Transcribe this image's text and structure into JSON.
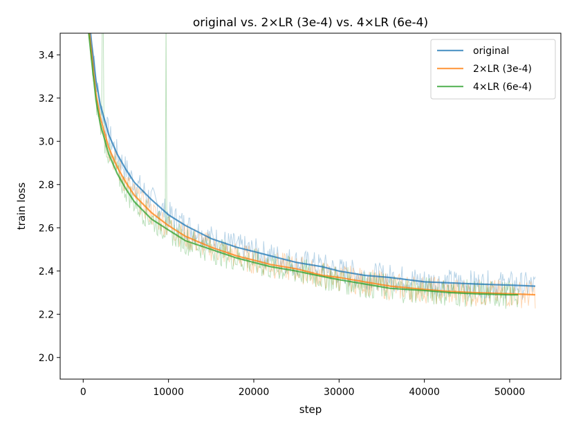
{
  "chart_data": {
    "type": "line",
    "title": "original vs. 2×LR (3e-4) vs. 4×LR (6e-4)",
    "xlabel": "step",
    "ylabel": "train loss",
    "xlim": [
      -2700,
      56000
    ],
    "ylim": [
      1.9,
      3.5
    ],
    "xticks": [
      0,
      10000,
      20000,
      30000,
      40000,
      50000
    ],
    "yticks": [
      2.0,
      2.2,
      2.4,
      2.6,
      2.8,
      3.0,
      3.2,
      3.4
    ],
    "grid": false,
    "legend": "top-right",
    "series": [
      {
        "name": "original",
        "color": "#1f77b4",
        "x": [
          600,
          1000,
          1500,
          2000,
          3000,
          4000,
          5000,
          6000,
          8000,
          10000,
          12000,
          15000,
          18000,
          20000,
          22000,
          25000,
          28000,
          30000,
          33000,
          36000,
          40000,
          43000,
          46000,
          50000,
          53000
        ],
        "y": [
          3.6,
          3.45,
          3.28,
          3.17,
          3.03,
          2.94,
          2.87,
          2.81,
          2.73,
          2.66,
          2.61,
          2.55,
          2.51,
          2.49,
          2.47,
          2.44,
          2.42,
          2.4,
          2.38,
          2.37,
          2.35,
          2.345,
          2.34,
          2.335,
          2.33
        ],
        "noise": 0.065
      },
      {
        "name": "2×LR (3e-4)",
        "color": "#ff7f0e",
        "x": [
          600,
          1000,
          1500,
          2000,
          3000,
          4000,
          5000,
          6000,
          8000,
          10000,
          12000,
          15000,
          18000,
          20000,
          22000,
          25000,
          28000,
          30000,
          33000,
          36000,
          40000,
          43000,
          46000,
          50000,
          53000
        ],
        "y": [
          3.55,
          3.4,
          3.22,
          3.11,
          2.97,
          2.88,
          2.81,
          2.75,
          2.67,
          2.61,
          2.56,
          2.51,
          2.47,
          2.45,
          2.43,
          2.41,
          2.38,
          2.37,
          2.35,
          2.33,
          2.315,
          2.305,
          2.3,
          2.295,
          2.29
        ],
        "noise": 0.065
      },
      {
        "name": "4×LR (6e-4)",
        "color": "#2ca02c",
        "x": [
          600,
          1000,
          1500,
          2000,
          3000,
          4000,
          5000,
          6000,
          8000,
          10000,
          12000,
          15000,
          18000,
          20000,
          22000,
          25000,
          28000,
          30000,
          33000,
          36000,
          40000,
          43000,
          46000,
          50000,
          51000
        ],
        "y": [
          3.52,
          3.37,
          3.19,
          3.08,
          2.94,
          2.85,
          2.78,
          2.72,
          2.64,
          2.59,
          2.54,
          2.5,
          2.46,
          2.44,
          2.42,
          2.4,
          2.375,
          2.36,
          2.34,
          2.32,
          2.31,
          2.3,
          2.295,
          2.29,
          2.29
        ],
        "noise": 0.065,
        "spikes": [
          [
            2300,
            3.6
          ],
          [
            9700,
            3.6
          ]
        ]
      }
    ]
  }
}
